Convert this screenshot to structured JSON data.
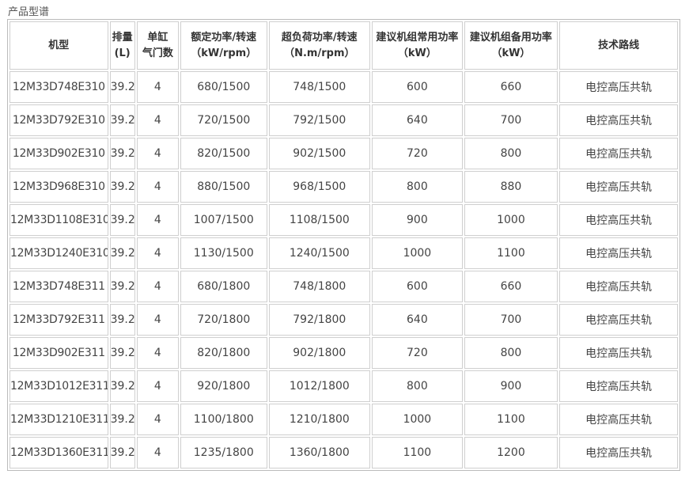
{
  "title": "产品型谱",
  "headers": [
    {
      "l1": "机型",
      "l2": ""
    },
    {
      "l1": "排量",
      "l2": "(L)"
    },
    {
      "l1": "单缸",
      "l2": "气门数"
    },
    {
      "l1": "额定功率/转速",
      "l2": "（kW/rpm）"
    },
    {
      "l1": "超负荷功率/转速",
      "l2": "（N.m/rpm）"
    },
    {
      "l1": "建议机组常用功率",
      "l2": "（kW）"
    },
    {
      "l1": "建议机组备用功率",
      "l2": "（kW）"
    },
    {
      "l1": "技术路线",
      "l2": ""
    }
  ],
  "rows": [
    [
      "12M33D748E310",
      "39.2",
      "4",
      "680/1500",
      "748/1500",
      "600",
      "660",
      "电控高压共轨"
    ],
    [
      "12M33D792E310",
      "39.2",
      "4",
      "720/1500",
      "792/1500",
      "640",
      "700",
      "电控高压共轨"
    ],
    [
      "12M33D902E310",
      "39.2",
      "4",
      "820/1500",
      "902/1500",
      "720",
      "800",
      "电控高压共轨"
    ],
    [
      "12M33D968E310",
      "39.2",
      "4",
      "880/1500",
      "968/1500",
      "800",
      "880",
      "电控高压共轨"
    ],
    [
      "12M33D1108E310",
      "39.2",
      "4",
      "1007/1500",
      "1108/1500",
      "900",
      "1000",
      "电控高压共轨"
    ],
    [
      "12M33D1240E310",
      "39.2",
      "4",
      "1130/1500",
      "1240/1500",
      "1000",
      "1100",
      "电控高压共轨"
    ],
    [
      "12M33D748E311",
      "39.2",
      "4",
      "680/1800",
      "748/1800",
      "600",
      "660",
      "电控高压共轨"
    ],
    [
      "12M33D792E311",
      "39.2",
      "4",
      "720/1800",
      "792/1800",
      "640",
      "700",
      "电控高压共轨"
    ],
    [
      "12M33D902E311",
      "39.2",
      "4",
      "820/1800",
      "902/1800",
      "720",
      "800",
      "电控高压共轨"
    ],
    [
      "12M33D1012E311",
      "39.2",
      "4",
      "920/1800",
      "1012/1800",
      "800",
      "900",
      "电控高压共轨"
    ],
    [
      "12M33D1210E311",
      "39.2",
      "4",
      "1100/1800",
      "1210/1800",
      "1000",
      "1100",
      "电控高压共轨"
    ],
    [
      "12M33D1360E311",
      "39.2",
      "4",
      "1235/1800",
      "1360/1800",
      "1100",
      "1200",
      "电控高压共轨"
    ]
  ]
}
